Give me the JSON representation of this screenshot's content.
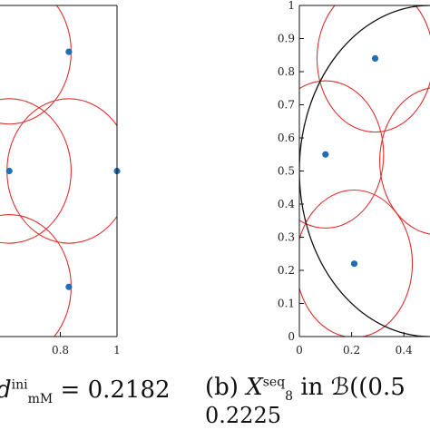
{
  "chart_data": [
    {
      "type": "scatter",
      "xlim": [
        0.6,
        1.0
      ],
      "ylim": [
        0.0,
        1.0
      ],
      "x_ticks": [
        "0.8",
        "1"
      ],
      "y_ticks": [],
      "points": [
        [
          0.83,
          0.86
        ],
        [
          0.62,
          0.5
        ],
        [
          1.0,
          0.5
        ],
        [
          0.83,
          0.15
        ]
      ],
      "circles": [
        {
          "cx": 0.62,
          "cy": 0.86,
          "r": 0.2182
        },
        {
          "cx": 0.83,
          "cy": 0.5,
          "r": 0.2182
        },
        {
          "cx": 0.62,
          "cy": 0.5,
          "r": 0.2182
        },
        {
          "cx": 0.62,
          "cy": 0.15,
          "r": 0.2182
        }
      ],
      "point_color": "#1f6fb4",
      "circle_color": "#e03030",
      "caption": {
        "symbol": "d",
        "sup": "ini",
        "sub": "mM",
        "value": "= 0.2182"
      }
    },
    {
      "type": "scatter",
      "xlim": [
        0,
        0.5
      ],
      "ylim": [
        0,
        1
      ],
      "x_ticks": [
        "0",
        "0.2",
        "0.4"
      ],
      "y_ticks": [
        "0",
        "0.1",
        "0.2",
        "0.3",
        "0.4",
        "0.5",
        "0.6",
        "0.7",
        "0.8",
        "0.9",
        "1"
      ],
      "points": [
        [
          0.29,
          0.84
        ],
        [
          0.1,
          0.55
        ],
        [
          0.21,
          0.22
        ]
      ],
      "circles": [
        {
          "cx": 0.29,
          "cy": 0.84,
          "r": 0.2225
        },
        {
          "cx": 0.1,
          "cy": 0.55,
          "r": 0.2225
        },
        {
          "cx": 0.21,
          "cy": 0.22,
          "r": 0.2225
        },
        {
          "cx": 0.53,
          "cy": 0.53,
          "r": 0.2225
        }
      ],
      "ball": {
        "cx": 0.5,
        "cy": 0.5,
        "r": 0.5
      },
      "point_color": "#1f6fb4",
      "circle_color": "#e03030",
      "ball_color": "#111111",
      "caption": {
        "label": "(b)",
        "symbol": "X",
        "sup": "seq",
        "sub": "8",
        "text": "in",
        "set": "ℬ((0.5",
        "line2": "0.2225"
      }
    }
  ]
}
